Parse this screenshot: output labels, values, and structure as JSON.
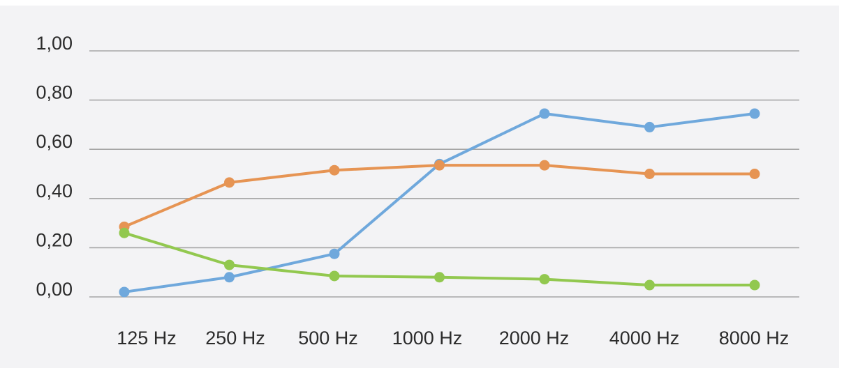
{
  "chart_data": {
    "type": "line",
    "categories": [
      "125 Hz",
      "250 Hz",
      "500 Hz",
      "1000 Hz",
      "2000 Hz",
      "4000 Hz",
      "8000 Hz"
    ],
    "ylim": [
      0,
      1
    ],
    "y_ticks": [
      "0,00",
      "0,20",
      "0,40",
      "0,60",
      "0,80",
      "1,00"
    ],
    "grid": true,
    "series": [
      {
        "color": "#6fa8dc",
        "values": [
          0.02,
          0.08,
          0.175,
          0.54,
          0.745,
          0.69,
          0.745
        ]
      },
      {
        "color": "#e69453",
        "values": [
          0.285,
          0.465,
          0.515,
          0.535,
          0.535,
          0.5,
          0.5
        ]
      },
      {
        "color": "#92c84f",
        "values": [
          0.26,
          0.13,
          0.085,
          0.08,
          0.072,
          0.048,
          0.048
        ]
      }
    ],
    "colors": {
      "background": "#f3f3f5",
      "gridline": "#a6a6a6",
      "text": "#2b2b2b"
    }
  }
}
